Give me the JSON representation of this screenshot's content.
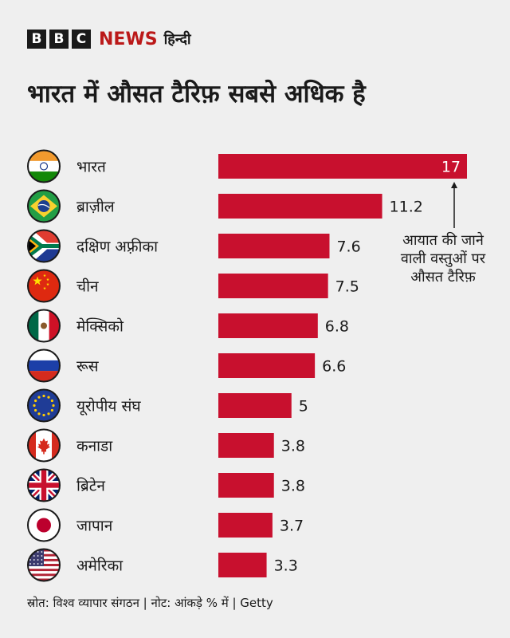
{
  "brand": {
    "b1": "B",
    "b2": "B",
    "b3": "C",
    "news": "NEWS",
    "language": "हिन्दी"
  },
  "chart_data": {
    "type": "bar",
    "orientation": "horizontal",
    "title": "भारत में औसत टैरिफ़ सबसे अधिक है",
    "categories": [
      "भारत",
      "ब्राज़ील",
      "दक्षिण अफ़्रीका",
      "चीन",
      "मेक्सिको",
      "रूस",
      "यूरोपीय संघ",
      "कनाडा",
      "ब्रिटेन",
      "जापान",
      "अमेरिका"
    ],
    "values": [
      17,
      11.2,
      7.6,
      7.5,
      6.8,
      6.6,
      5,
      3.8,
      3.8,
      3.7,
      3.3
    ],
    "value_labels": [
      "17",
      "11.2",
      "7.6",
      "7.5",
      "6.8",
      "6.6",
      "5",
      "3.8",
      "3.8",
      "3.7",
      "3.3"
    ],
    "flags": [
      "india-flag",
      "brazil-flag",
      "south-africa-flag",
      "china-flag",
      "mexico-flag",
      "russia-flag",
      "eu-flag",
      "canada-flag",
      "uk-flag",
      "japan-flag",
      "usa-flag"
    ],
    "bar_color": "#c8102e",
    "xlim": [
      0,
      17
    ],
    "grid": false,
    "annotation": "आयात की जाने वाली वस्तुओं पर औसत टैरिफ़"
  },
  "footer": "स्रोत: विश्व व्यापार संगठन | नोट: आंकड़े % में | Getty"
}
